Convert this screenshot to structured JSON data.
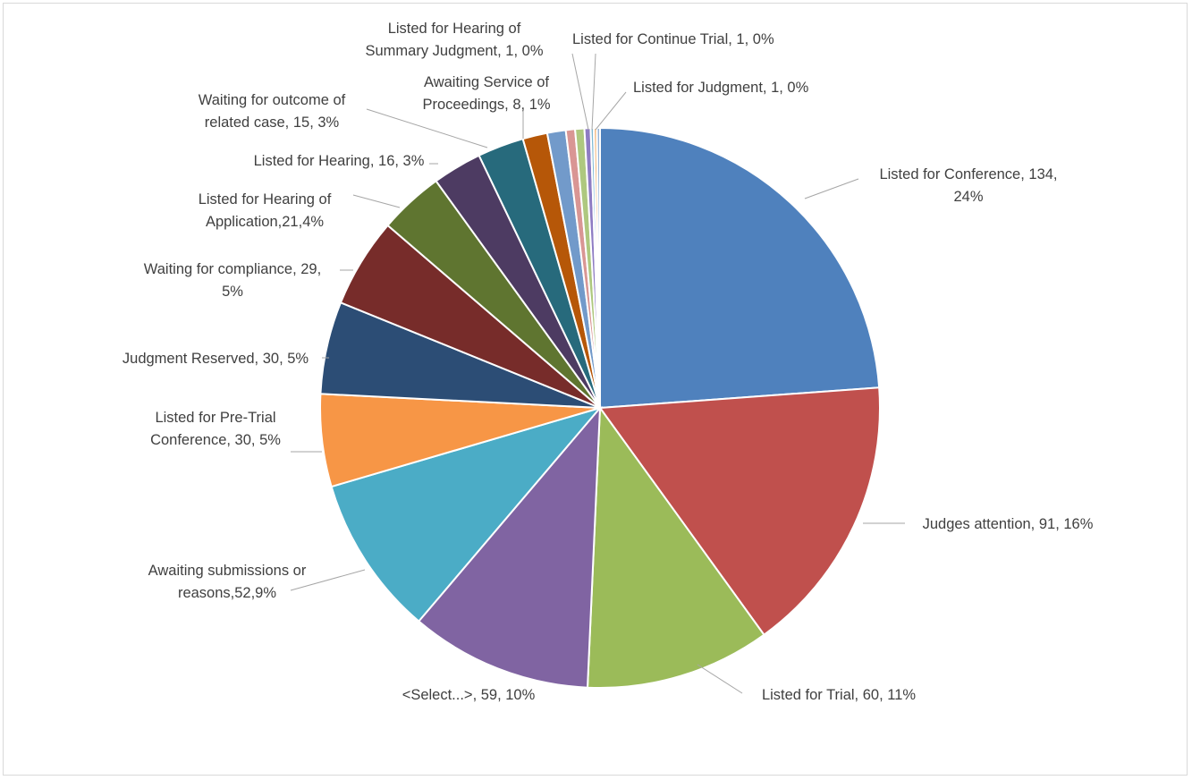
{
  "chart_data": {
    "type": "pie",
    "title": "",
    "start_angle_deg": 0,
    "direction": "clockwise",
    "slices": [
      {
        "label_lines": [
          "Listed for Conference, 134,",
          "24%"
        ],
        "name": "Listed for Conference",
        "value": 134,
        "percent": "24%",
        "color": "#4f81bd"
      },
      {
        "label_lines": [
          "Judges attention, 91, 16%"
        ],
        "name": "Judges attention",
        "value": 91,
        "percent": "16%",
        "color": "#c0504d"
      },
      {
        "label_lines": [
          "Listed for Trial, 60, 11%"
        ],
        "name": "Listed for Trial",
        "value": 60,
        "percent": "11%",
        "color": "#9bbb59"
      },
      {
        "label_lines": [
          "<Select...>, 59, 10%"
        ],
        "name": "<Select...>",
        "value": 59,
        "percent": "10%",
        "color": "#8064a2"
      },
      {
        "label_lines": [
          "Awaiting submissions or",
          "reasons,52,9%"
        ],
        "name": "Awaiting submissions or reasons",
        "value": 52,
        "percent": "9%",
        "color": "#4bacc6"
      },
      {
        "label_lines": [
          "Listed for Pre-Trial",
          "Conference, 30, 5%"
        ],
        "name": "Listed for Pre-Trial Conference",
        "value": 30,
        "percent": "5%",
        "color": "#f79646"
      },
      {
        "label_lines": [
          "Judgment Reserved, 30, 5%"
        ],
        "name": "Judgment Reserved",
        "value": 30,
        "percent": "5%",
        "color": "#2c4d75"
      },
      {
        "label_lines": [
          "Waiting for compliance, 29,",
          "5%"
        ],
        "name": "Waiting for compliance",
        "value": 29,
        "percent": "5%",
        "color": "#772c2a"
      },
      {
        "label_lines": [
          "Listed for Hearing of",
          "Application,21,4%"
        ],
        "name": "Listed for Hearing of Application",
        "value": 21,
        "percent": "4%",
        "color": "#5f7530"
      },
      {
        "label_lines": [
          "Listed for Hearing, 16, 3%"
        ],
        "name": "Listed for Hearing",
        "value": 16,
        "percent": "3%",
        "color": "#4d3b62"
      },
      {
        "label_lines": [
          "Waiting for outcome of",
          "related case, 15, 3%"
        ],
        "name": "Waiting for outcome of related case",
        "value": 15,
        "percent": "3%",
        "color": "#276a7c"
      },
      {
        "label_lines": [
          "Awaiting Service of",
          "Proceedings, 8, 1%"
        ],
        "name": "Awaiting Service of Proceedings",
        "value": 8,
        "percent": "1%",
        "color": "#b65708"
      },
      {
        "label_lines": [],
        "name": "",
        "value": 6,
        "percent": "",
        "color": "#729aca"
      },
      {
        "label_lines": [],
        "name": "",
        "value": 3,
        "percent": "",
        "color": "#d99694"
      },
      {
        "label_lines": [],
        "name": "",
        "value": 3,
        "percent": "",
        "color": "#aec87f"
      },
      {
        "label_lines": [],
        "name": "",
        "value": 2,
        "percent": "",
        "color": "#8e7cc3"
      },
      {
        "label_lines": [
          "Listed for Hearing of",
          "Summary Judgment, 1, 0%"
        ],
        "name": "Listed for Hearing of Summary Judgment",
        "value": 1,
        "percent": "0%",
        "color": "#7fb9d3"
      },
      {
        "label_lines": [
          "Listed for Continue Trial, 1, 0%"
        ],
        "name": "Listed for Continue Trial",
        "value": 1,
        "percent": "0%",
        "color": "#f5b97f"
      },
      {
        "label_lines": [
          "Listed for Judgment, 1, 0%"
        ],
        "name": "Listed for Judgment",
        "value": 1,
        "percent": "0%",
        "color": "#95b3d7"
      }
    ]
  }
}
